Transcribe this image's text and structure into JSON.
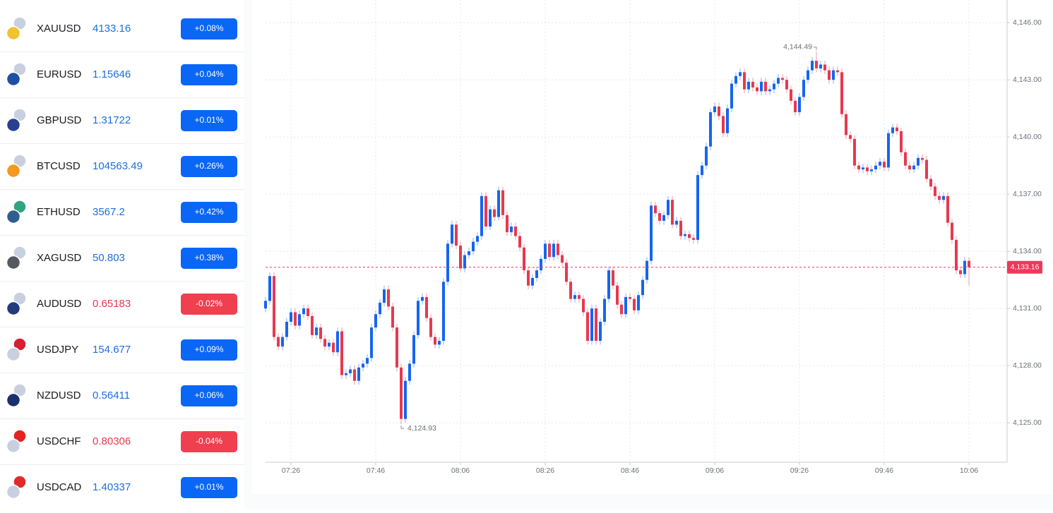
{
  "watchlist": [
    {
      "symbol": "XAUUSD",
      "price": "4133.16",
      "change": "+0.08%",
      "color": "#1a6fdf",
      "badge_color": "#0a66f5",
      "icon_colors": [
        "#c8d0e0",
        "#f0c330"
      ]
    },
    {
      "symbol": "EURUSD",
      "price": "1.15646",
      "change": "+0.04%",
      "color": "#1a6fdf",
      "badge_color": "#0a66f5",
      "icon_colors": [
        "#c8d0e0",
        "#1f4fa0"
      ]
    },
    {
      "symbol": "GBPUSD",
      "price": "1.31722",
      "change": "+0.01%",
      "color": "#1a6fdf",
      "badge_color": "#0a66f5",
      "icon_colors": [
        "#c8d0e0",
        "#2a3f8f"
      ]
    },
    {
      "symbol": "BTCUSD",
      "price": "104563.49",
      "change": "+0.26%",
      "color": "#1a6fdf",
      "badge_color": "#0a66f5",
      "icon_colors": [
        "#c8d0e0",
        "#f39a1e"
      ]
    },
    {
      "symbol": "ETHUSD",
      "price": "3567.2",
      "change": "+0.42%",
      "color": "#1a6fdf",
      "badge_color": "#0a66f5",
      "icon_colors": [
        "#2fa57f",
        "#2d5f8f"
      ]
    },
    {
      "symbol": "XAGUSD",
      "price": "50.803",
      "change": "+0.38%",
      "color": "#1a6fdf",
      "badge_color": "#0a66f5",
      "icon_colors": [
        "#c8d0e0",
        "#55585e"
      ]
    },
    {
      "symbol": "AUDUSD",
      "price": "0.65183",
      "change": "-0.02%",
      "color": "#e8394f",
      "badge_color": "#f0404f",
      "icon_colors": [
        "#c8d0e0",
        "#243a7a"
      ]
    },
    {
      "symbol": "USDJPY",
      "price": "154.677",
      "change": "+0.09%",
      "color": "#1a6fdf",
      "badge_color": "#0a66f5",
      "icon_colors": [
        "#d81e30",
        "#c8d0e0"
      ]
    },
    {
      "symbol": "NZDUSD",
      "price": "0.56411",
      "change": "+0.06%",
      "color": "#1a6fdf",
      "badge_color": "#0a66f5",
      "icon_colors": [
        "#c8d0e0",
        "#1c2f6e"
      ]
    },
    {
      "symbol": "USDCHF",
      "price": "0.80306",
      "change": "-0.04%",
      "color": "#e8394f",
      "badge_color": "#f0404f",
      "icon_colors": [
        "#e52421",
        "#c8d0e0"
      ]
    },
    {
      "symbol": "USDCAD",
      "price": "1.40337",
      "change": "+0.01%",
      "color": "#1a6fdf",
      "badge_color": "#0a66f5",
      "icon_colors": [
        "#e02b2b",
        "#c8d0e0"
      ]
    }
  ],
  "chart_data": {
    "type": "candlestick",
    "up_color": "#1565f0",
    "down_color": "#e8384f",
    "grid": true,
    "ylim": [
      4122.93,
      4147.19
    ],
    "yticks": [
      {
        "value": 4125,
        "label": "4,125.00"
      },
      {
        "value": 4128,
        "label": "4,128.00"
      },
      {
        "value": 4131,
        "label": "4,131.00"
      },
      {
        "value": 4134,
        "label": "4,134.00"
      },
      {
        "value": 4137,
        "label": "4,137.00"
      },
      {
        "value": 4140,
        "label": "4,140.00"
      },
      {
        "value": 4143,
        "label": "4,143.00"
      },
      {
        "value": 4146,
        "label": "4,146.00"
      }
    ],
    "high_marker": {
      "value": 4144.49,
      "label": "4,144.49"
    },
    "low_marker": {
      "value": 4124.93,
      "label": "4,124.93"
    },
    "last_price": {
      "value": 4133.16,
      "label": "4,133.16",
      "color": "#f0375a"
    },
    "categories": [
      null,
      null,
      null,
      null,
      null,
      null,
      "07:26",
      null,
      null,
      null,
      null,
      null,
      null,
      null,
      null,
      null,
      null,
      null,
      null,
      null,
      null,
      null,
      null,
      null,
      null,
      null,
      "07:46",
      null,
      null,
      null,
      null,
      null,
      null,
      null,
      null,
      null,
      null,
      null,
      null,
      null,
      null,
      null,
      null,
      null,
      null,
      null,
      "08:06",
      null,
      null,
      null,
      null,
      null,
      null,
      null,
      null,
      null,
      null,
      null,
      null,
      null,
      null,
      null,
      null,
      null,
      null,
      null,
      "08:26",
      null,
      null,
      null,
      null,
      null,
      null,
      null,
      null,
      null,
      null,
      null,
      null,
      null,
      null,
      null,
      null,
      null,
      null,
      null,
      "08:46",
      null,
      null,
      null,
      null,
      null,
      null,
      null,
      null,
      null,
      null,
      null,
      null,
      null,
      null,
      null,
      null,
      null,
      null,
      null,
      "09:06",
      null,
      null,
      null,
      null,
      null,
      null,
      null,
      null,
      null,
      null,
      null,
      null,
      null,
      null,
      null,
      null,
      null,
      null,
      null,
      "09:26",
      null,
      null,
      null,
      null,
      null,
      null,
      null,
      null,
      null,
      null,
      null,
      null,
      null,
      null,
      null,
      null,
      null,
      null,
      null,
      "09:46",
      null,
      null,
      null,
      null,
      null,
      null,
      null,
      null,
      null,
      null,
      null,
      null,
      null,
      null,
      null,
      null,
      null,
      null,
      null,
      "10:06"
    ],
    "ohlc": [
      [
        4131.0,
        4131.6,
        4130.8,
        4131.4
      ],
      [
        4131.4,
        4132.9,
        4131.2,
        4132.7
      ],
      [
        4132.7,
        4132.9,
        4129.3,
        4129.5
      ],
      [
        4129.5,
        4129.7,
        4128.8,
        4129.0
      ],
      [
        4129.0,
        4129.7,
        4128.8,
        4129.5
      ],
      [
        4129.5,
        4130.5,
        4129.3,
        4130.3
      ],
      [
        4130.3,
        4131.0,
        4130.1,
        4130.8
      ],
      [
        4130.8,
        4131.0,
        4129.9,
        4130.1
      ],
      [
        4130.1,
        4130.9,
        4129.9,
        4130.7
      ],
      [
        4130.7,
        4131.2,
        4130.5,
        4131.0
      ],
      [
        4131.0,
        4131.2,
        4130.4,
        4130.6
      ],
      [
        4130.6,
        4130.8,
        4129.4,
        4129.6
      ],
      [
        4129.6,
        4130.2,
        4129.4,
        4130.0
      ],
      [
        4130.0,
        4130.2,
        4129.2,
        4129.4
      ],
      [
        4129.4,
        4129.6,
        4128.8,
        4129.0
      ],
      [
        4129.0,
        4129.4,
        4128.8,
        4129.2
      ],
      [
        4129.2,
        4129.4,
        4128.5,
        4128.7
      ],
      [
        4128.7,
        4130.0,
        4128.5,
        4129.8
      ],
      [
        4129.8,
        4130.0,
        4127.3,
        4127.5
      ],
      [
        4127.5,
        4127.8,
        4127.3,
        4127.6
      ],
      [
        4127.6,
        4128.0,
        4127.4,
        4127.8
      ],
      [
        4127.8,
        4128.0,
        4127.0,
        4127.2
      ],
      [
        4127.2,
        4128.1,
        4127.0,
        4127.9
      ],
      [
        4127.9,
        4128.3,
        4127.7,
        4128.1
      ],
      [
        4128.1,
        4128.6,
        4127.9,
        4128.4
      ],
      [
        4128.4,
        4130.2,
        4128.2,
        4130.0
      ],
      [
        4130.0,
        4130.9,
        4129.8,
        4130.7
      ],
      [
        4130.7,
        4131.5,
        4130.5,
        4131.3
      ],
      [
        4131.3,
        4132.2,
        4131.1,
        4132.0
      ],
      [
        4132.0,
        4132.2,
        4130.9,
        4131.1
      ],
      [
        4131.1,
        4131.3,
        4129.8,
        4130.0
      ],
      [
        4130.0,
        4130.2,
        4127.7,
        4127.9
      ],
      [
        4127.9,
        4128.1,
        4124.93,
        4125.2
      ],
      [
        4125.2,
        4127.4,
        4125.0,
        4127.2
      ],
      [
        4127.2,
        4128.3,
        4127.0,
        4128.1
      ],
      [
        4128.1,
        4129.8,
        4127.9,
        4129.6
      ],
      [
        4129.6,
        4131.6,
        4129.4,
        4131.4
      ],
      [
        4131.4,
        4131.8,
        4131.2,
        4131.6
      ],
      [
        4131.6,
        4131.8,
        4130.3,
        4130.5
      ],
      [
        4130.5,
        4130.7,
        4129.3,
        4129.5
      ],
      [
        4129.5,
        4129.7,
        4128.9,
        4129.1
      ],
      [
        4129.1,
        4129.5,
        4128.9,
        4129.3
      ],
      [
        4129.3,
        4132.6,
        4129.1,
        4132.4
      ],
      [
        4132.4,
        4134.6,
        4132.2,
        4134.4
      ],
      [
        4134.4,
        4135.6,
        4134.2,
        4135.4
      ],
      [
        4135.4,
        4135.6,
        4134.1,
        4134.3
      ],
      [
        4134.3,
        4134.5,
        4132.9,
        4133.1
      ],
      [
        4133.1,
        4134.0,
        4132.9,
        4133.8
      ],
      [
        4133.8,
        4134.2,
        4133.6,
        4134.0
      ],
      [
        4134.0,
        4134.7,
        4133.8,
        4134.5
      ],
      [
        4134.5,
        4135.0,
        4134.3,
        4134.8
      ],
      [
        4134.8,
        4137.1,
        4134.6,
        4136.9
      ],
      [
        4136.9,
        4137.1,
        4135.1,
        4135.3
      ],
      [
        4135.3,
        4136.4,
        4135.1,
        4136.2
      ],
      [
        4136.2,
        4136.4,
        4135.6,
        4135.8
      ],
      [
        4135.8,
        4137.4,
        4135.6,
        4137.2
      ],
      [
        4137.2,
        4137.4,
        4135.7,
        4135.9
      ],
      [
        4135.9,
        4136.1,
        4134.8,
        4135.0
      ],
      [
        4135.0,
        4135.5,
        4134.8,
        4135.3
      ],
      [
        4135.3,
        4135.5,
        4134.6,
        4134.8
      ],
      [
        4134.8,
        4135.0,
        4134.0,
        4134.2
      ],
      [
        4134.2,
        4134.4,
        4132.8,
        4133.0
      ],
      [
        4133.0,
        4133.2,
        4132.0,
        4132.2
      ],
      [
        4132.2,
        4132.8,
        4132.0,
        4132.6
      ],
      [
        4132.6,
        4133.2,
        4132.4,
        4133.0
      ],
      [
        4133.0,
        4133.8,
        4132.8,
        4133.6
      ],
      [
        4133.6,
        4134.6,
        4133.4,
        4134.4
      ],
      [
        4134.4,
        4134.6,
        4133.5,
        4133.7
      ],
      [
        4133.7,
        4134.6,
        4133.5,
        4134.4
      ],
      [
        4134.4,
        4134.6,
        4133.6,
        4133.8
      ],
      [
        4133.8,
        4134.0,
        4133.2,
        4133.4
      ],
      [
        4133.4,
        4133.6,
        4132.2,
        4132.4
      ],
      [
        4132.4,
        4132.6,
        4131.3,
        4131.5
      ],
      [
        4131.5,
        4131.9,
        4131.3,
        4131.7
      ],
      [
        4131.7,
        4131.9,
        4131.3,
        4131.5
      ],
      [
        4131.5,
        4131.7,
        4130.6,
        4130.8
      ],
      [
        4130.8,
        4131.0,
        4129.1,
        4129.3
      ],
      [
        4129.3,
        4131.2,
        4129.1,
        4131.0
      ],
      [
        4131.0,
        4131.2,
        4129.1,
        4129.3
      ],
      [
        4129.3,
        4130.5,
        4129.1,
        4130.3
      ],
      [
        4130.3,
        4131.7,
        4130.1,
        4131.5
      ],
      [
        4131.5,
        4133.2,
        4131.3,
        4133.0
      ],
      [
        4133.0,
        4133.2,
        4132.0,
        4132.2
      ],
      [
        4132.2,
        4132.4,
        4131.0,
        4131.2
      ],
      [
        4131.2,
        4131.4,
        4130.5,
        4130.7
      ],
      [
        4130.7,
        4131.8,
        4130.5,
        4131.6
      ],
      [
        4131.6,
        4131.8,
        4131.3,
        4131.5
      ],
      [
        4131.5,
        4131.7,
        4130.7,
        4130.9
      ],
      [
        4130.9,
        4131.9,
        4130.7,
        4131.7
      ],
      [
        4131.7,
        4132.7,
        4131.5,
        4132.5
      ],
      [
        4132.5,
        4133.7,
        4132.3,
        4133.5
      ],
      [
        4133.5,
        4136.6,
        4133.3,
        4136.4
      ],
      [
        4136.4,
        4136.6,
        4135.8,
        4136.0
      ],
      [
        4136.0,
        4136.2,
        4135.4,
        4135.6
      ],
      [
        4135.6,
        4136.1,
        4135.4,
        4135.9
      ],
      [
        4135.9,
        4136.9,
        4135.7,
        4136.7
      ],
      [
        4136.7,
        4136.9,
        4135.2,
        4135.4
      ],
      [
        4135.4,
        4135.8,
        4135.2,
        4135.6
      ],
      [
        4135.6,
        4135.8,
        4134.6,
        4134.8
      ],
      [
        4134.8,
        4135.1,
        4134.6,
        4134.9
      ],
      [
        4134.9,
        4135.1,
        4134.5,
        4134.7
      ],
      [
        4134.7,
        4134.9,
        4134.4,
        4134.6
      ],
      [
        4134.6,
        4138.2,
        4134.4,
        4138.0
      ],
      [
        4138.0,
        4138.7,
        4137.8,
        4138.5
      ],
      [
        4138.5,
        4139.7,
        4138.3,
        4139.5
      ],
      [
        4139.5,
        4141.5,
        4139.3,
        4141.3
      ],
      [
        4141.3,
        4141.8,
        4141.1,
        4141.6
      ],
      [
        4141.6,
        4141.8,
        4140.9,
        4141.1
      ],
      [
        4141.1,
        4141.3,
        4140.0,
        4140.2
      ],
      [
        4140.2,
        4141.7,
        4140.0,
        4141.5
      ],
      [
        4141.5,
        4143.0,
        4141.3,
        4142.8
      ],
      [
        4142.8,
        4143.4,
        4142.6,
        4143.2
      ],
      [
        4143.2,
        4143.6,
        4143.0,
        4143.4
      ],
      [
        4143.4,
        4143.6,
        4142.3,
        4142.5
      ],
      [
        4142.5,
        4143.1,
        4142.3,
        4142.9
      ],
      [
        4142.9,
        4143.1,
        4142.4,
        4142.6
      ],
      [
        4142.6,
        4142.8,
        4142.2,
        4142.4
      ],
      [
        4142.4,
        4143.1,
        4142.2,
        4142.9
      ],
      [
        4142.9,
        4143.1,
        4142.2,
        4142.4
      ],
      [
        4142.4,
        4142.7,
        4142.2,
        4142.5
      ],
      [
        4142.5,
        4143.0,
        4142.3,
        4142.8
      ],
      [
        4142.8,
        4143.3,
        4142.6,
        4143.1
      ],
      [
        4143.1,
        4143.3,
        4142.8,
        4143.0
      ],
      [
        4143.0,
        4143.2,
        4142.3,
        4142.5
      ],
      [
        4142.5,
        4142.7,
        4141.7,
        4141.9
      ],
      [
        4141.9,
        4142.1,
        4141.1,
        4141.3
      ],
      [
        4141.3,
        4142.3,
        4141.1,
        4142.1
      ],
      [
        4142.1,
        4143.2,
        4141.9,
        4143.0
      ],
      [
        4143.0,
        4143.7,
        4142.8,
        4143.5
      ],
      [
        4143.5,
        4144.2,
        4143.3,
        4144.0
      ],
      [
        4144.0,
        4144.49,
        4143.4,
        4143.6
      ],
      [
        4143.6,
        4144.0,
        4143.4,
        4143.8
      ],
      [
        4143.8,
        4144.0,
        4143.3,
        4143.5
      ],
      [
        4143.5,
        4143.7,
        4142.8,
        4143.0
      ],
      [
        4143.0,
        4143.7,
        4142.8,
        4143.5
      ],
      [
        4143.5,
        4143.7,
        4143.2,
        4143.4
      ],
      [
        4143.4,
        4143.6,
        4141.0,
        4141.2
      ],
      [
        4141.2,
        4141.4,
        4139.9,
        4140.1
      ],
      [
        4140.1,
        4140.3,
        4139.7,
        4139.9
      ],
      [
        4139.9,
        4140.1,
        4138.3,
        4138.5
      ],
      [
        4138.5,
        4138.7,
        4138.1,
        4138.3
      ],
      [
        4138.3,
        4138.6,
        4138.1,
        4138.4
      ],
      [
        4138.4,
        4138.6,
        4138.0,
        4138.2
      ],
      [
        4138.2,
        4138.5,
        4138.0,
        4138.3
      ],
      [
        4138.3,
        4138.7,
        4138.1,
        4138.5
      ],
      [
        4138.5,
        4138.9,
        4138.3,
        4138.7
      ],
      [
        4138.7,
        4138.9,
        4138.2,
        4138.4
      ],
      [
        4138.4,
        4140.4,
        4138.2,
        4140.2
      ],
      [
        4140.2,
        4140.7,
        4140.0,
        4140.5
      ],
      [
        4140.5,
        4140.7,
        4140.1,
        4140.3
      ],
      [
        4140.3,
        4140.5,
        4139.0,
        4139.2
      ],
      [
        4139.2,
        4139.4,
        4138.3,
        4138.5
      ],
      [
        4138.5,
        4138.7,
        4138.1,
        4138.3
      ],
      [
        4138.3,
        4138.7,
        4138.1,
        4138.5
      ],
      [
        4138.5,
        4139.1,
        4138.3,
        4138.9
      ],
      [
        4138.9,
        4139.1,
        4138.6,
        4138.8
      ],
      [
        4138.8,
        4139.0,
        4137.6,
        4137.8
      ],
      [
        4137.8,
        4138.0,
        4137.2,
        4137.4
      ],
      [
        4137.4,
        4137.6,
        4136.7,
        4136.9
      ],
      [
        4136.9,
        4137.1,
        4136.5,
        4136.7
      ],
      [
        4136.7,
        4137.1,
        4136.5,
        4136.9
      ],
      [
        4136.9,
        4137.1,
        4135.3,
        4135.5
      ],
      [
        4135.5,
        4135.7,
        4134.4,
        4134.6
      ],
      [
        4134.6,
        4134.8,
        4132.8,
        4133.0
      ],
      [
        4133.0,
        4133.2,
        4132.6,
        4132.8
      ],
      [
        4132.8,
        4133.7,
        4132.6,
        4133.5
      ],
      [
        4133.5,
        4133.7,
        4132.2,
        4133.16
      ]
    ]
  }
}
